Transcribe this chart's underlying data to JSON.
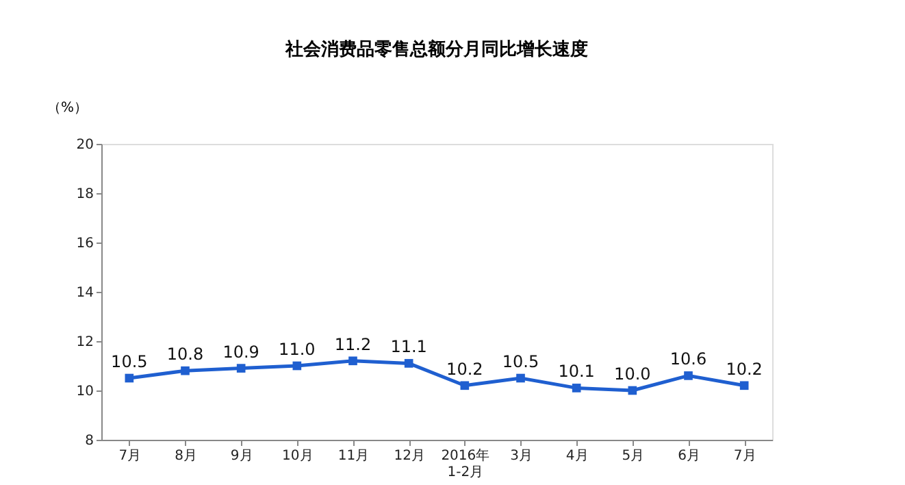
{
  "chart_data": {
    "type": "line",
    "title": "社会消费品零售总额分月同比增长速度",
    "ylabel": "（%）",
    "categories": [
      "7月",
      "8月",
      "9月",
      "10月",
      "11月",
      "12月",
      "2016年\n1-2月",
      "3月",
      "4月",
      "5月",
      "6月",
      "7月"
    ],
    "series": [
      {
        "color": "#1f5fd0",
        "values": [
          10.5,
          10.8,
          10.9,
          11.0,
          11.2,
          11.1,
          10.2,
          10.5,
          10.1,
          10.0,
          10.6,
          10.2
        ],
        "value_labels": [
          "10.5",
          "10.8",
          "10.9",
          "11.0",
          "11.2",
          "11.1",
          "10.2",
          "10.5",
          "10.1",
          "10.0",
          "10.6",
          "10.2"
        ]
      }
    ],
    "ylim": [
      8,
      20
    ],
    "yticks": [
      8,
      10,
      12,
      14,
      16,
      18,
      20
    ],
    "grid": false,
    "marker": "square",
    "line_style": "solid"
  }
}
